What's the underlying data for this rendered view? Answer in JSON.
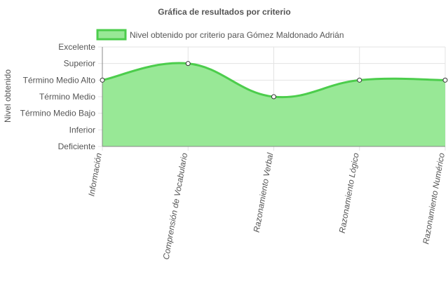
{
  "chart_data": {
    "type": "area",
    "title": "Gráfica de resultados por criterio",
    "ylabel": "Nivel obtenido",
    "xlabel": "",
    "categories": [
      "Información",
      "Comprensión de Vocabulario",
      "Razonamiento Verbal",
      "Razonamiento Lógico",
      "Razonamiento Numérico"
    ],
    "y_levels": [
      "Deficiente",
      "Inferior",
      "Término Medio Bajo",
      "Término Medio",
      "Término Medio Alto",
      "Superior",
      "Excelente"
    ],
    "ylim": [
      0,
      6
    ],
    "grid": true,
    "legend_position": "top-left",
    "series": [
      {
        "name": "Nivel obtenido por criterio para Gómez Maldonado Adrián",
        "values": [
          4,
          5,
          3,
          4,
          4
        ],
        "color": "#4ccd4c",
        "fill": "#98e896"
      }
    ]
  }
}
